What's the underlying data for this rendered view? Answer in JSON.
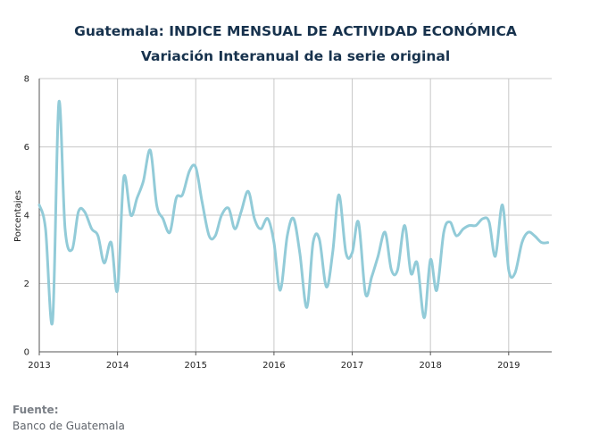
{
  "chart_data": {
    "type": "line",
    "title": "Guatemala: INDICE MENSUAL DE ACTIVIDAD ECONÓMICA",
    "subtitle": "Variación Interanual de la serie original",
    "ylabel": "Porcentajes",
    "xlabel": "",
    "ylim": [
      0,
      8
    ],
    "yticks": [
      0,
      2,
      4,
      6,
      8
    ],
    "xlim": [
      2013.0,
      2019.55
    ],
    "xticks": [
      {
        "value": 2013,
        "label": "2013"
      },
      {
        "value": 2014,
        "label": "2014"
      },
      {
        "value": 2015,
        "label": "2015"
      },
      {
        "value": 2016,
        "label": "2016"
      },
      {
        "value": 2017,
        "label": "2017"
      },
      {
        "value": 2018,
        "label": "2018"
      },
      {
        "value": 2019,
        "label": "2019"
      }
    ],
    "grid": true,
    "line_color": "#92cbd8",
    "series": [
      {
        "x": [
          2013.0,
          2013.08,
          2013.17,
          2013.25,
          2013.33,
          2013.42,
          2013.5,
          2013.58,
          2013.67,
          2013.75,
          2013.83,
          2013.92,
          2014.0,
          2014.08,
          2014.17,
          2014.25,
          2014.33,
          2014.42,
          2014.5,
          2014.58,
          2014.67,
          2014.75,
          2014.83,
          2014.92,
          2015.0,
          2015.08,
          2015.17,
          2015.25,
          2015.33,
          2015.42,
          2015.5,
          2015.58,
          2015.67,
          2015.75,
          2015.83,
          2015.92,
          2016.0,
          2016.08,
          2016.17,
          2016.25,
          2016.33,
          2016.42,
          2016.5,
          2016.58,
          2016.67,
          2016.75,
          2016.83,
          2016.92,
          2017.0,
          2017.08,
          2017.17,
          2017.25,
          2017.33,
          2017.42,
          2017.5,
          2017.58,
          2017.67,
          2017.75,
          2017.83,
          2017.92,
          2018.0,
          2018.08,
          2018.17,
          2018.25,
          2018.33,
          2018.42,
          2018.5,
          2018.58,
          2018.67,
          2018.75,
          2018.83,
          2018.92,
          2019.0,
          2019.08,
          2019.17,
          2019.25,
          2019.33,
          2019.42,
          2019.5
        ],
        "values": [
          4.3,
          3.6,
          0.9,
          7.3,
          3.6,
          3.0,
          4.1,
          4.1,
          3.6,
          3.4,
          2.6,
          3.2,
          1.8,
          5.1,
          4.0,
          4.5,
          5.0,
          5.9,
          4.3,
          3.9,
          3.5,
          4.5,
          4.6,
          5.3,
          5.4,
          4.4,
          3.4,
          3.4,
          4.0,
          4.2,
          3.6,
          4.1,
          4.7,
          3.9,
          3.6,
          3.9,
          3.2,
          1.8,
          3.4,
          3.9,
          2.9,
          1.3,
          3.2,
          3.3,
          1.9,
          2.9,
          4.6,
          2.9,
          2.9,
          3.8,
          1.7,
          2.2,
          2.8,
          3.5,
          2.4,
          2.4,
          3.7,
          2.3,
          2.6,
          1.0,
          2.7,
          1.8,
          3.5,
          3.8,
          3.4,
          3.6,
          3.7,
          3.7,
          3.9,
          3.8,
          2.8,
          4.3,
          2.4,
          2.3,
          3.2,
          3.5,
          3.4,
          3.2,
          3.2
        ]
      }
    ]
  },
  "footer": {
    "label": "Fuente:",
    "source": "Banco de Guatemala"
  }
}
